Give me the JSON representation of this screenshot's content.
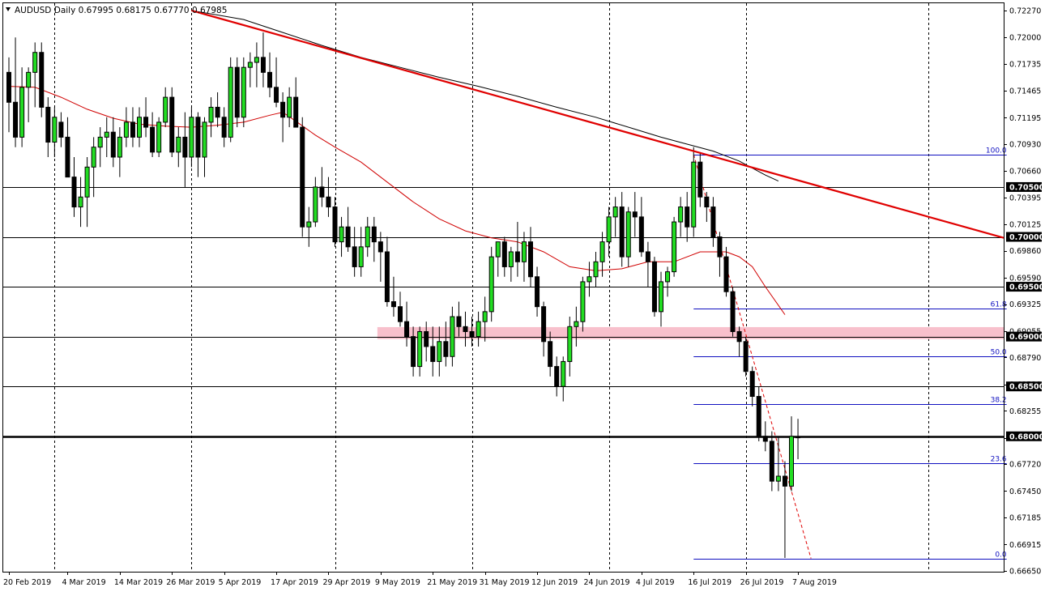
{
  "header": {
    "symbol": "AUDUSD",
    "timeframe": "Daily",
    "open": "0.67995",
    "high": "0.68175",
    "low": "0.67770",
    "close": "0.67985"
  },
  "chart_data": {
    "type": "candlestick",
    "y_range": [
      0.6665,
      0.7227
    ],
    "y_axis_ticks": [
      "0.72270",
      "0.72000",
      "0.71735",
      "0.71465",
      "0.71195",
      "0.70930",
      "0.70660",
      "0.70395",
      "0.70125",
      "0.69860",
      "0.69590",
      "0.69325",
      "0.69055",
      "0.68790",
      "0.68520",
      "0.68255",
      "0.67985",
      "0.67720",
      "0.67450",
      "0.67185",
      "0.66915",
      "0.66650"
    ],
    "x_axis_labels": [
      {
        "label": "20 Feb 2019",
        "index": 0
      },
      {
        "label": "4 Mar 2019",
        "index": 9
      },
      {
        "label": "14 Mar 2019",
        "index": 17
      },
      {
        "label": "26 Mar 2019",
        "index": 25
      },
      {
        "label": "5 Apr 2019",
        "index": 33
      },
      {
        "label": "17 Apr 2019",
        "index": 41
      },
      {
        "label": "29 Apr 2019",
        "index": 49
      },
      {
        "label": "9 May 2019",
        "index": 57
      },
      {
        "label": "21 May 2019",
        "index": 65
      },
      {
        "label": "31 May 2019",
        "index": 73
      },
      {
        "label": "12 Jun 2019",
        "index": 81
      },
      {
        "label": "24 Jun 2019",
        "index": 89
      },
      {
        "label": "4 Jul 2019",
        "index": 97
      },
      {
        "label": "16 Jul 2019",
        "index": 105
      },
      {
        "label": "26 Jul 2019",
        "index": 113
      },
      {
        "label": "7 Aug 2019",
        "index": 121
      }
    ],
    "vertical_grid_indices": [
      7,
      28,
      50,
      71,
      92,
      113,
      141
    ],
    "horizontal_levels": [
      {
        "price": 0.705,
        "label": "0.70500",
        "thickness": 1
      },
      {
        "price": 0.7,
        "label": "0.70000",
        "thickness": 1
      },
      {
        "price": 0.695,
        "label": "0.69500",
        "thickness": 1
      },
      {
        "price": 0.69,
        "label": "0.69000",
        "thickness": 1
      },
      {
        "price": 0.685,
        "label": "0.68500",
        "thickness": 1
      },
      {
        "price": 0.68,
        "label": "0.68000",
        "thickness": 2.5
      }
    ],
    "support_zone": {
      "from_index": 57,
      "top": 0.69095,
      "bottom": 0.68975,
      "color": "#f8c0cc"
    },
    "trendline": {
      "x1": 28,
      "y1": 0.7227,
      "x2": 156,
      "y2": 0.6999,
      "color": "#e00000"
    },
    "fibonacci": {
      "from_index": 105,
      "to_index": 153,
      "high": 0.70825,
      "low": 0.66775,
      "levels": [
        {
          "ratio": 1.0,
          "label": "100.0"
        },
        {
          "ratio": 0.618,
          "label": "61.8"
        },
        {
          "ratio": 0.5,
          "label": "50.0"
        },
        {
          "ratio": 0.382,
          "label": "38.2"
        },
        {
          "ratio": 0.236,
          "label": "23.6"
        },
        {
          "ratio": 0.0,
          "label": "0.0"
        }
      ],
      "color": "#1010c0"
    },
    "fib_dashed_line": {
      "x1": 105,
      "y1": 0.70825,
      "x2": 123,
      "y2": 0.66775,
      "color": "#e00000"
    },
    "moving_average_slow": {
      "color": "#000000",
      "points": [
        [
          28,
          0.7227
        ],
        [
          36,
          0.7218
        ],
        [
          42,
          0.7205
        ],
        [
          48,
          0.7192
        ],
        [
          54,
          0.718
        ],
        [
          60,
          0.717
        ],
        [
          66,
          0.716
        ],
        [
          72,
          0.7151
        ],
        [
          78,
          0.7141
        ],
        [
          84,
          0.713
        ],
        [
          90,
          0.712
        ],
        [
          96,
          0.7108
        ],
        [
          100,
          0.71
        ],
        [
          104,
          0.7093
        ],
        [
          108,
          0.7086
        ],
        [
          112,
          0.7076
        ],
        [
          116,
          0.7062
        ],
        [
          118,
          0.7056
        ]
      ]
    },
    "moving_average_fast": {
      "color": "#d00000",
      "points": [
        [
          0,
          0.7151
        ],
        [
          4,
          0.715
        ],
        [
          8,
          0.714
        ],
        [
          12,
          0.7128
        ],
        [
          16,
          0.7119
        ],
        [
          20,
          0.7113
        ],
        [
          24,
          0.7111
        ],
        [
          28,
          0.711
        ],
        [
          32,
          0.7112
        ],
        [
          36,
          0.7115
        ],
        [
          40,
          0.7122
        ],
        [
          42,
          0.7125
        ],
        [
          44,
          0.7116
        ],
        [
          47,
          0.7102
        ],
        [
          50,
          0.709
        ],
        [
          54,
          0.7075
        ],
        [
          58,
          0.7055
        ],
        [
          62,
          0.7035
        ],
        [
          66,
          0.7018
        ],
        [
          70,
          0.7006
        ],
        [
          74,
          0.6999
        ],
        [
          78,
          0.6995
        ],
        [
          82,
          0.6985
        ],
        [
          86,
          0.697
        ],
        [
          90,
          0.6966
        ],
        [
          94,
          0.6968
        ],
        [
          98,
          0.6975
        ],
        [
          102,
          0.6975
        ],
        [
          106,
          0.6985
        ],
        [
          110,
          0.6985
        ],
        [
          112,
          0.698
        ],
        [
          114,
          0.697
        ],
        [
          116,
          0.695
        ],
        [
          119,
          0.6922
        ]
      ]
    },
    "candles": [
      [
        0.7165,
        0.718,
        0.7105,
        0.7135
      ],
      [
        0.7135,
        0.72,
        0.709,
        0.71
      ],
      [
        0.71,
        0.717,
        0.709,
        0.715
      ],
      [
        0.715,
        0.717,
        0.7115,
        0.7165
      ],
      [
        0.7165,
        0.7195,
        0.713,
        0.7185
      ],
      [
        0.7185,
        0.7195,
        0.712,
        0.713
      ],
      [
        0.713,
        0.714,
        0.708,
        0.7095
      ],
      [
        0.7095,
        0.713,
        0.708,
        0.712
      ],
      [
        0.7115,
        0.7125,
        0.709,
        0.71
      ],
      [
        0.71,
        0.712,
        0.706,
        0.706
      ],
      [
        0.706,
        0.708,
        0.702,
        0.703
      ],
      [
        0.703,
        0.706,
        0.701,
        0.704
      ],
      [
        0.704,
        0.708,
        0.701,
        0.707
      ],
      [
        0.707,
        0.71,
        0.704,
        0.709
      ],
      [
        0.709,
        0.711,
        0.707,
        0.71
      ],
      [
        0.71,
        0.712,
        0.708,
        0.7105
      ],
      [
        0.7105,
        0.712,
        0.707,
        0.708
      ],
      [
        0.708,
        0.711,
        0.706,
        0.71
      ],
      [
        0.71,
        0.713,
        0.709,
        0.7115
      ],
      [
        0.7115,
        0.713,
        0.709,
        0.71
      ],
      [
        0.71,
        0.713,
        0.709,
        0.712
      ],
      [
        0.712,
        0.714,
        0.71,
        0.711
      ],
      [
        0.711,
        0.7125,
        0.708,
        0.7085
      ],
      [
        0.7085,
        0.712,
        0.708,
        0.7115
      ],
      [
        0.7115,
        0.715,
        0.711,
        0.714
      ],
      [
        0.714,
        0.715,
        0.708,
        0.7085
      ],
      [
        0.7085,
        0.711,
        0.707,
        0.71
      ],
      [
        0.71,
        0.7125,
        0.705,
        0.708
      ],
      [
        0.708,
        0.713,
        0.707,
        0.712
      ],
      [
        0.712,
        0.7125,
        0.706,
        0.708
      ],
      [
        0.708,
        0.712,
        0.706,
        0.7115
      ],
      [
        0.7115,
        0.714,
        0.71,
        0.713
      ],
      [
        0.713,
        0.7145,
        0.711,
        0.712
      ],
      [
        0.712,
        0.713,
        0.709,
        0.71
      ],
      [
        0.71,
        0.718,
        0.7095,
        0.717
      ],
      [
        0.717,
        0.718,
        0.711,
        0.712
      ],
      [
        0.712,
        0.718,
        0.711,
        0.717
      ],
      [
        0.717,
        0.7185,
        0.715,
        0.7175
      ],
      [
        0.7175,
        0.7195,
        0.715,
        0.718
      ],
      [
        0.718,
        0.7205,
        0.715,
        0.7165
      ],
      [
        0.7165,
        0.7185,
        0.714,
        0.715
      ],
      [
        0.715,
        0.718,
        0.713,
        0.7135
      ],
      [
        0.7135,
        0.7145,
        0.7095,
        0.712
      ],
      [
        0.712,
        0.715,
        0.711,
        0.714
      ],
      [
        0.714,
        0.716,
        0.711,
        0.711
      ],
      [
        0.711,
        0.712,
        0.7,
        0.701
      ],
      [
        0.701,
        0.703,
        0.699,
        0.7015
      ],
      [
        0.7015,
        0.706,
        0.701,
        0.705
      ],
      [
        0.705,
        0.707,
        0.703,
        0.704
      ],
      [
        0.704,
        0.706,
        0.702,
        0.703
      ],
      [
        0.703,
        0.704,
        0.699,
        0.6995
      ],
      [
        0.6995,
        0.702,
        0.698,
        0.701
      ],
      [
        0.701,
        0.703,
        0.6985,
        0.699
      ],
      [
        0.699,
        0.701,
        0.696,
        0.697
      ],
      [
        0.697,
        0.701,
        0.696,
        0.699
      ],
      [
        0.699,
        0.702,
        0.698,
        0.701
      ],
      [
        0.701,
        0.702,
        0.6975,
        0.6995
      ],
      [
        0.6995,
        0.7005,
        0.6955,
        0.6985
      ],
      [
        0.6985,
        0.7,
        0.693,
        0.6935
      ],
      [
        0.6935,
        0.696,
        0.692,
        0.693
      ],
      [
        0.693,
        0.6945,
        0.691,
        0.6915
      ],
      [
        0.6915,
        0.6935,
        0.689,
        0.69
      ],
      [
        0.69,
        0.691,
        0.686,
        0.687
      ],
      [
        0.687,
        0.691,
        0.686,
        0.6905
      ],
      [
        0.6905,
        0.6915,
        0.6875,
        0.689
      ],
      [
        0.689,
        0.691,
        0.686,
        0.6875
      ],
      [
        0.6875,
        0.691,
        0.686,
        0.6895
      ],
      [
        0.6895,
        0.6915,
        0.687,
        0.688
      ],
      [
        0.688,
        0.693,
        0.687,
        0.692
      ],
      [
        0.692,
        0.6935,
        0.69,
        0.691
      ],
      [
        0.691,
        0.6925,
        0.689,
        0.6905
      ],
      [
        0.6905,
        0.692,
        0.689,
        0.69
      ],
      [
        0.69,
        0.6925,
        0.689,
        0.6915
      ],
      [
        0.6915,
        0.694,
        0.6895,
        0.6925
      ],
      [
        0.6925,
        0.699,
        0.6915,
        0.698
      ],
      [
        0.698,
        0.6995,
        0.696,
        0.6995
      ],
      [
        0.6995,
        0.7,
        0.696,
        0.697
      ],
      [
        0.697,
        0.699,
        0.6955,
        0.6985
      ],
      [
        0.6985,
        0.7015,
        0.696,
        0.6975
      ],
      [
        0.6975,
        0.7005,
        0.6955,
        0.6995
      ],
      [
        0.6995,
        0.701,
        0.695,
        0.696
      ],
      [
        0.696,
        0.697,
        0.692,
        0.693
      ],
      [
        0.693,
        0.6935,
        0.688,
        0.6895
      ],
      [
        0.6895,
        0.6905,
        0.686,
        0.687
      ],
      [
        0.687,
        0.688,
        0.684,
        0.685
      ],
      [
        0.685,
        0.688,
        0.6835,
        0.6875
      ],
      [
        0.6875,
        0.692,
        0.686,
        0.691
      ],
      [
        0.691,
        0.693,
        0.689,
        0.6915
      ],
      [
        0.6915,
        0.696,
        0.6905,
        0.6955
      ],
      [
        0.6955,
        0.6975,
        0.694,
        0.696
      ],
      [
        0.696,
        0.6985,
        0.695,
        0.6975
      ],
      [
        0.6975,
        0.7005,
        0.696,
        0.6995
      ],
      [
        0.6995,
        0.703,
        0.698,
        0.702
      ],
      [
        0.702,
        0.704,
        0.7,
        0.703
      ],
      [
        0.703,
        0.7045,
        0.697,
        0.698
      ],
      [
        0.698,
        0.703,
        0.697,
        0.7025
      ],
      [
        0.7025,
        0.7045,
        0.7,
        0.702
      ],
      [
        0.702,
        0.704,
        0.698,
        0.6985
      ],
      [
        0.6985,
        0.6995,
        0.695,
        0.6975
      ],
      [
        0.6975,
        0.698,
        0.692,
        0.6925
      ],
      [
        0.6925,
        0.6965,
        0.691,
        0.6955
      ],
      [
        0.6955,
        0.697,
        0.694,
        0.6965
      ],
      [
        0.6965,
        0.702,
        0.696,
        0.7015
      ],
      [
        0.7015,
        0.704,
        0.7,
        0.703
      ],
      [
        0.703,
        0.7045,
        0.6995,
        0.701
      ],
      [
        0.701,
        0.709,
        0.7,
        0.7075
      ],
      [
        0.7075,
        0.7085,
        0.703,
        0.704
      ],
      [
        0.704,
        0.7045,
        0.7015,
        0.703
      ],
      [
        0.703,
        0.704,
        0.699,
        0.7
      ],
      [
        0.7,
        0.7005,
        0.696,
        0.698
      ],
      [
        0.698,
        0.699,
        0.694,
        0.6945
      ],
      [
        0.6945,
        0.695,
        0.69,
        0.6905
      ],
      [
        0.6905,
        0.691,
        0.688,
        0.6895
      ],
      [
        0.6895,
        0.69,
        0.686,
        0.6865
      ],
      [
        0.6865,
        0.687,
        0.683,
        0.684
      ],
      [
        0.684,
        0.685,
        0.6795,
        0.68
      ],
      [
        0.68,
        0.6815,
        0.6785,
        0.6795
      ],
      [
        0.6795,
        0.6805,
        0.6745,
        0.6755
      ],
      [
        0.6755,
        0.68,
        0.6745,
        0.676
      ],
      [
        0.676,
        0.6775,
        0.6678,
        0.675
      ],
      [
        0.675,
        0.682,
        0.6745,
        0.68
      ],
      [
        0.67995,
        0.68175,
        0.6777,
        0.67985
      ]
    ]
  }
}
